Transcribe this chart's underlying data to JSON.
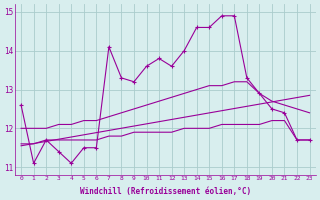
{
  "xlabel": "Windchill (Refroidissement éolien,°C)",
  "hours": [
    0,
    1,
    2,
    3,
    4,
    5,
    6,
    7,
    8,
    9,
    10,
    11,
    12,
    13,
    14,
    15,
    16,
    17,
    18,
    19,
    20,
    21,
    22,
    23
  ],
  "temp_line": [
    12.6,
    11.1,
    11.7,
    11.4,
    11.1,
    11.5,
    11.5,
    14.1,
    13.3,
    13.2,
    13.6,
    13.8,
    13.6,
    14.0,
    14.6,
    14.6,
    14.9,
    14.9,
    13.3,
    12.9,
    12.5,
    12.4,
    11.7,
    11.7
  ],
  "smooth_line": [
    12.0,
    12.0,
    12.0,
    12.1,
    12.1,
    12.2,
    12.2,
    12.3,
    12.4,
    12.5,
    12.6,
    12.7,
    12.8,
    12.9,
    13.0,
    13.1,
    13.1,
    13.2,
    13.2,
    12.9,
    12.7,
    12.6,
    12.5,
    12.4
  ],
  "avg_line": [
    11.6,
    11.6,
    11.7,
    11.7,
    11.7,
    11.7,
    11.7,
    11.8,
    11.8,
    11.9,
    11.9,
    11.9,
    11.9,
    12.0,
    12.0,
    12.0,
    12.1,
    12.1,
    12.1,
    12.1,
    12.2,
    12.2,
    11.7,
    11.7
  ],
  "reg_line": [
    [
      0,
      23
    ],
    [
      11.55,
      12.85
    ]
  ],
  "line_color": "#990099",
  "bg_color": "#d8eeee",
  "grid_color": "#aacccc",
  "ylim": [
    10.8,
    15.2
  ],
  "xlim": [
    -0.5,
    23.5
  ],
  "yticks": [
    11,
    12,
    13,
    14,
    15
  ],
  "xticks": [
    0,
    1,
    2,
    3,
    4,
    5,
    6,
    7,
    8,
    9,
    10,
    11,
    12,
    13,
    14,
    15,
    16,
    17,
    18,
    19,
    20,
    21,
    22,
    23
  ]
}
